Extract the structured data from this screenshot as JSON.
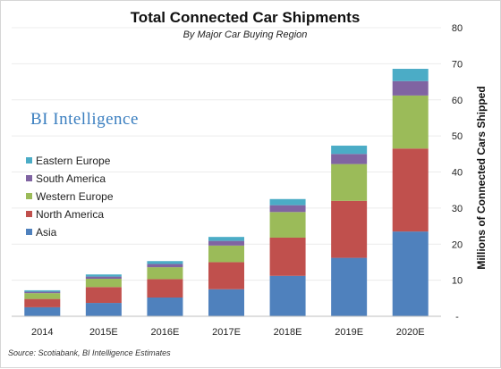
{
  "watermark": "BI Intelligence",
  "source": "Source: Scotiabank, BI Intelligence Estimates",
  "colors": {
    "Asia": "#4f81bd",
    "North America": "#c0504d",
    "Western Europe": "#9bbb59",
    "South America": "#8064a2",
    "Eastern Europe": "#4bacc6"
  },
  "chart_data": {
    "type": "bar",
    "stacked": true,
    "title": "Total Connected Car Shipments",
    "subtitle": "By Major Car Buying Region",
    "ylabel": "Millions of Connected Cars Shipped",
    "xlabel": "",
    "ylim": [
      0,
      80
    ],
    "yticks": [
      "-",
      "10",
      "20",
      "30",
      "40",
      "50",
      "60",
      "70",
      "80"
    ],
    "y_axis_position": "right",
    "legend_position": "left",
    "categories": [
      "2014",
      "2015E",
      "2016E",
      "2017E",
      "2018E",
      "2019E",
      "2020E"
    ],
    "series": [
      {
        "name": "Asia",
        "values": [
          2.5,
          3.7,
          5.2,
          7.5,
          11.2,
          16.2,
          23.5
        ]
      },
      {
        "name": "North America",
        "values": [
          2.3,
          4.4,
          5.1,
          7.5,
          10.6,
          15.8,
          23.0
        ]
      },
      {
        "name": "Western Europe",
        "values": [
          1.6,
          2.3,
          3.3,
          4.6,
          7.1,
          10.2,
          14.7
        ]
      },
      {
        "name": "South America",
        "values": [
          0.4,
          0.6,
          0.9,
          1.3,
          1.9,
          2.8,
          4.0
        ]
      },
      {
        "name": "Eastern Europe",
        "values": [
          0.4,
          0.6,
          0.8,
          1.1,
          1.7,
          2.3,
          3.4
        ]
      }
    ]
  }
}
